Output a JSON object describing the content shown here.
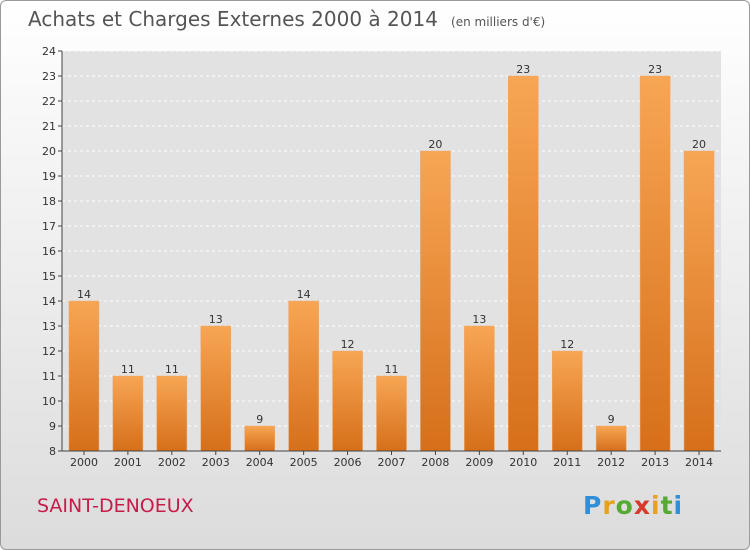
{
  "header": {
    "title": "Achats et Charges Externes 2000 à 2014",
    "subtitle": "(en milliers d'€)"
  },
  "footer": {
    "commune": "SAINT-DENOEUX",
    "logo_text": "Proxiti"
  },
  "colors": {
    "bar_light": "#f7a654",
    "bar_dark": "#d66f1a",
    "commune_text": "#c71c4a"
  },
  "chart_data": {
    "type": "bar",
    "title": "Achats et Charges Externes 2000 à 2014",
    "subtitle": "(en milliers d'€)",
    "xlabel": "",
    "ylabel": "",
    "categories": [
      "2000",
      "2001",
      "2002",
      "2003",
      "2004",
      "2005",
      "2006",
      "2007",
      "2008",
      "2009",
      "2010",
      "2011",
      "2012",
      "2013",
      "2014"
    ],
    "values": [
      14,
      11,
      11,
      13,
      9,
      14,
      12,
      11,
      20,
      13,
      23,
      12,
      9,
      23,
      20
    ],
    "ylim": [
      8,
      24
    ],
    "yticks": [
      8,
      9,
      10,
      11,
      12,
      13,
      14,
      15,
      16,
      17,
      18,
      19,
      20,
      21,
      22,
      23,
      24
    ],
    "grid": true,
    "legend": "none"
  }
}
